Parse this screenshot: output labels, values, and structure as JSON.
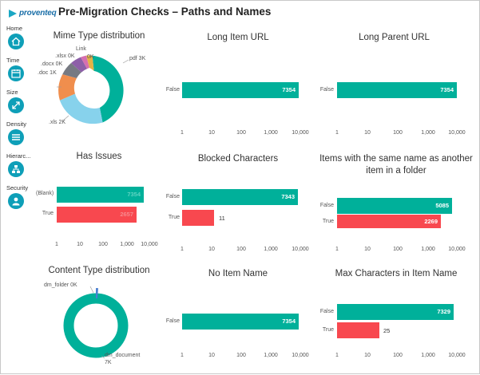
{
  "header": {
    "brand": "proventeq",
    "title": "Pre-Migration Checks – Paths and Names"
  },
  "sidebar": {
    "items": [
      {
        "label": "Home",
        "icon": "home-icon"
      },
      {
        "label": "Time",
        "icon": "time-icon"
      },
      {
        "label": "Size",
        "icon": "size-icon"
      },
      {
        "label": "Density",
        "icon": "density-icon"
      },
      {
        "label": "Hierarc...",
        "icon": "hierarchy-icon"
      },
      {
        "label": "Security",
        "icon": "security-icon"
      }
    ]
  },
  "colors": {
    "teal": "#00b09a",
    "red": "#f8484f",
    "nav": "#0e9fb8"
  },
  "ticks": [
    "1",
    "10",
    "100",
    "1,000",
    "10,000"
  ],
  "mime": {
    "title": "Mime Type distribution",
    "labels": {
      "pdf": "pdf 3K",
      "xls": ".xls 2K",
      "doc": ".doc 1K",
      "docx": ".docx 0K",
      "xlsx": ".xlsx 0K",
      "link": "Link",
      "zero": "0K"
    }
  },
  "long_item_url": {
    "title": "Long Item URL",
    "cat": "False",
    "val": "7354"
  },
  "long_parent_url": {
    "title": "Long Parent URL",
    "cat": "False",
    "val": "7354"
  },
  "has_issues": {
    "title": "Has Issues",
    "cat1": "(Blank)",
    "val1": "7354",
    "cat2": "True",
    "val2": "2657"
  },
  "blocked": {
    "title": "Blocked Characters",
    "cat1": "False",
    "val1": "7343",
    "cat2": "True",
    "val2": "11"
  },
  "same_name": {
    "title1": "Items with the same name as another",
    "title2": "item in a folder",
    "cat1": "False",
    "val1": "5085",
    "cat2": "True",
    "val2": "2269"
  },
  "content": {
    "title": "Content Type distribution",
    "folder": "dm_folder 0K",
    "doc1": "dm_document",
    "doc2": "7K"
  },
  "no_item_name": {
    "title": "No Item Name",
    "cat": "False",
    "val": "7354"
  },
  "max_chars": {
    "title": "Max Characters in Item Name",
    "cat1": "False",
    "val1": "7329",
    "cat2": "True",
    "val2": "25"
  },
  "chart_data": [
    {
      "type": "pie",
      "title": "Mime Type distribution",
      "labels": [
        "pdf",
        ".xls",
        ".doc",
        ".docx",
        ".xlsx",
        "Link"
      ],
      "values": [
        3,
        2,
        1,
        0,
        0,
        0
      ]
    },
    {
      "type": "bar",
      "title": "Long Item URL",
      "categories": [
        "False"
      ],
      "values": [
        7354
      ]
    },
    {
      "type": "bar",
      "title": "Long Parent URL",
      "categories": [
        "False"
      ],
      "values": [
        7354
      ]
    },
    {
      "type": "bar",
      "title": "Has Issues",
      "categories": [
        "(Blank)",
        "True"
      ],
      "values": [
        7354,
        2657
      ]
    },
    {
      "type": "bar",
      "title": "Blocked Characters",
      "categories": [
        "False",
        "True"
      ],
      "values": [
        7343,
        11
      ]
    },
    {
      "type": "bar",
      "title": "Items with the same name as another item in a folder",
      "categories": [
        "False",
        "True"
      ],
      "values": [
        5085,
        2269
      ]
    },
    {
      "type": "pie",
      "title": "Content Type distribution",
      "labels": [
        "dm_document",
        "dm_folder"
      ],
      "values": [
        7,
        0
      ]
    },
    {
      "type": "bar",
      "title": "No Item Name",
      "categories": [
        "False"
      ],
      "values": [
        7354
      ]
    },
    {
      "type": "bar",
      "title": "Max Characters in Item Name",
      "categories": [
        "False",
        "True"
      ],
      "values": [
        7329,
        25
      ]
    }
  ]
}
